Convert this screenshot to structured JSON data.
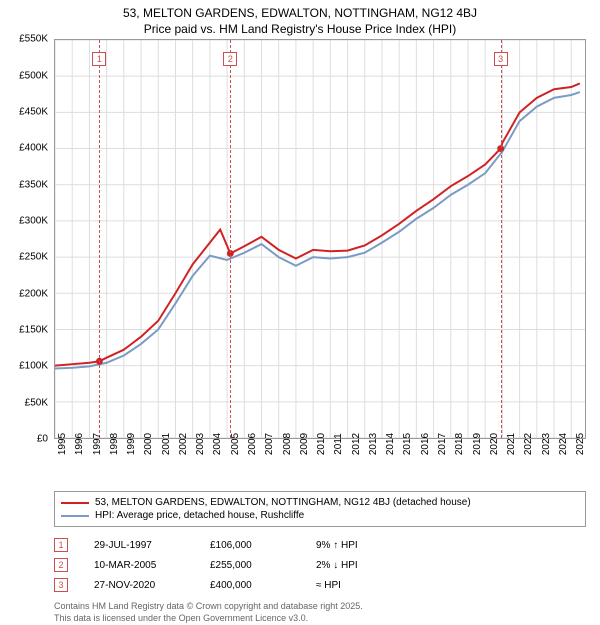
{
  "title_line1": "53, MELTON GARDENS, EDWALTON, NOTTINGHAM, NG12 4BJ",
  "title_line2": "Price paid vs. HM Land Registry's House Price Index (HPI)",
  "chart": {
    "type": "line",
    "background_color": "#ffffff",
    "grid_color": "#dddddd",
    "border_color": "#999999",
    "ylim": [
      0,
      550000
    ],
    "ytick_step": 50000,
    "ytick_labels": [
      "£0",
      "£50K",
      "£100K",
      "£150K",
      "£200K",
      "£250K",
      "£300K",
      "£350K",
      "£400K",
      "£450K",
      "£500K",
      "£550K"
    ],
    "xlim": [
      1995,
      2025.8
    ],
    "xtick_step": 1,
    "xtick_labels": [
      "1995",
      "1996",
      "1997",
      "1998",
      "1999",
      "2000",
      "2001",
      "2002",
      "2003",
      "2004",
      "2005",
      "2006",
      "2007",
      "2008",
      "2009",
      "2010",
      "2011",
      "2012",
      "2013",
      "2014",
      "2015",
      "2016",
      "2017",
      "2018",
      "2019",
      "2020",
      "2021",
      "2022",
      "2023",
      "2024",
      "2025"
    ],
    "series": [
      {
        "name": "property",
        "color": "#d02224",
        "line_width": 2,
        "data": [
          [
            1995,
            100000
          ],
          [
            1996,
            102000
          ],
          [
            1997,
            104000
          ],
          [
            1997.58,
            106000
          ],
          [
            1998,
            111000
          ],
          [
            1999,
            122000
          ],
          [
            2000,
            140000
          ],
          [
            2001,
            162000
          ],
          [
            2002,
            200000
          ],
          [
            2003,
            240000
          ],
          [
            2004,
            270000
          ],
          [
            2004.6,
            288000
          ],
          [
            2005.19,
            255000
          ],
          [
            2006,
            265000
          ],
          [
            2007,
            278000
          ],
          [
            2008,
            260000
          ],
          [
            2009,
            248000
          ],
          [
            2010,
            260000
          ],
          [
            2011,
            258000
          ],
          [
            2012,
            259000
          ],
          [
            2013,
            266000
          ],
          [
            2014,
            280000
          ],
          [
            2015,
            296000
          ],
          [
            2016,
            314000
          ],
          [
            2017,
            330000
          ],
          [
            2018,
            348000
          ],
          [
            2019,
            362000
          ],
          [
            2020,
            378000
          ],
          [
            2020.9,
            400000
          ],
          [
            2021,
            408000
          ],
          [
            2022,
            450000
          ],
          [
            2023,
            470000
          ],
          [
            2024,
            482000
          ],
          [
            2025,
            485000
          ],
          [
            2025.5,
            490000
          ]
        ]
      },
      {
        "name": "hpi",
        "color": "#7a9bc4",
        "line_width": 2,
        "data": [
          [
            1995,
            96000
          ],
          [
            1996,
            97000
          ],
          [
            1997,
            99000
          ],
          [
            1998,
            104000
          ],
          [
            1999,
            114000
          ],
          [
            2000,
            130000
          ],
          [
            2001,
            150000
          ],
          [
            2002,
            186000
          ],
          [
            2003,
            224000
          ],
          [
            2004,
            252000
          ],
          [
            2005,
            246000
          ],
          [
            2006,
            256000
          ],
          [
            2007,
            268000
          ],
          [
            2008,
            250000
          ],
          [
            2009,
            238000
          ],
          [
            2010,
            250000
          ],
          [
            2011,
            248000
          ],
          [
            2012,
            250000
          ],
          [
            2013,
            256000
          ],
          [
            2014,
            270000
          ],
          [
            2015,
            285000
          ],
          [
            2016,
            303000
          ],
          [
            2017,
            318000
          ],
          [
            2018,
            336000
          ],
          [
            2019,
            350000
          ],
          [
            2020,
            366000
          ],
          [
            2021,
            396000
          ],
          [
            2022,
            438000
          ],
          [
            2023,
            458000
          ],
          [
            2024,
            470000
          ],
          [
            2025,
            474000
          ],
          [
            2025.5,
            478000
          ]
        ]
      }
    ],
    "sale_markers": [
      {
        "n": "1",
        "x": 1997.58,
        "y": 106000
      },
      {
        "n": "2",
        "x": 2005.19,
        "y": 255000
      },
      {
        "n": "3",
        "x": 2020.9,
        "y": 400000
      }
    ],
    "vline_color": "#c94f50",
    "marker_top_offset": 12,
    "marker_dot_color": "#d02224",
    "marker_dot_radius": 3.5
  },
  "legend": {
    "items": [
      {
        "color": "#d02224",
        "label": "53, MELTON GARDENS, EDWALTON, NOTTINGHAM, NG12 4BJ (detached house)"
      },
      {
        "color": "#7a9bc4",
        "label": "HPI: Average price, detached house, Rushcliffe"
      }
    ]
  },
  "sales": [
    {
      "n": "1",
      "date": "29-JUL-1997",
      "price": "£106,000",
      "diff": "9% ↑ HPI"
    },
    {
      "n": "2",
      "date": "10-MAR-2005",
      "price": "£255,000",
      "diff": "2% ↓ HPI"
    },
    {
      "n": "3",
      "date": "27-NOV-2020",
      "price": "£400,000",
      "diff": "≈ HPI"
    }
  ],
  "copyright_line1": "Contains HM Land Registry data © Crown copyright and database right 2025.",
  "copyright_line2": "This data is licensed under the Open Government Licence v3.0."
}
